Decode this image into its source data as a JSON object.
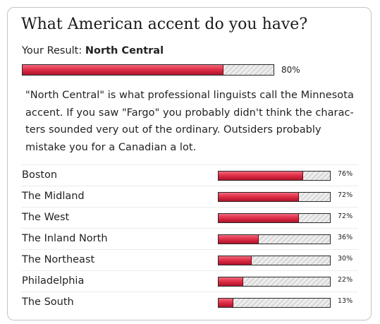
{
  "quiz": {
    "title": "What American accent do you have?",
    "result_prefix": "Your Result:",
    "result_name": "North Central",
    "result_percent": 80,
    "result_percent_label": "80%",
    "description": "\"North Central\" is what professional linguists call the Minnesota accent. If you saw \"Fargo\" you probably didn't think the charac-ters sounded very out of the ordinary. Outsiders probably mistake you for a Canadian a lot.",
    "other_results": [
      {
        "label": "Boston",
        "percent": 76,
        "percent_label": "76%"
      },
      {
        "label": "The Midland",
        "percent": 72,
        "percent_label": "72%"
      },
      {
        "label": "The West",
        "percent": 72,
        "percent_label": "72%"
      },
      {
        "label": "The Inland North",
        "percent": 36,
        "percent_label": "36%"
      },
      {
        "label": "The Northeast",
        "percent": 30,
        "percent_label": "30%"
      },
      {
        "label": "Philadelphia",
        "percent": 22,
        "percent_label": "22%"
      },
      {
        "label": "The South",
        "percent": 13,
        "percent_label": "13%"
      }
    ]
  },
  "colors": {
    "bar_fill": "#e3354e",
    "bar_track": "#e2e2e2",
    "border": "#c4c4c4"
  }
}
